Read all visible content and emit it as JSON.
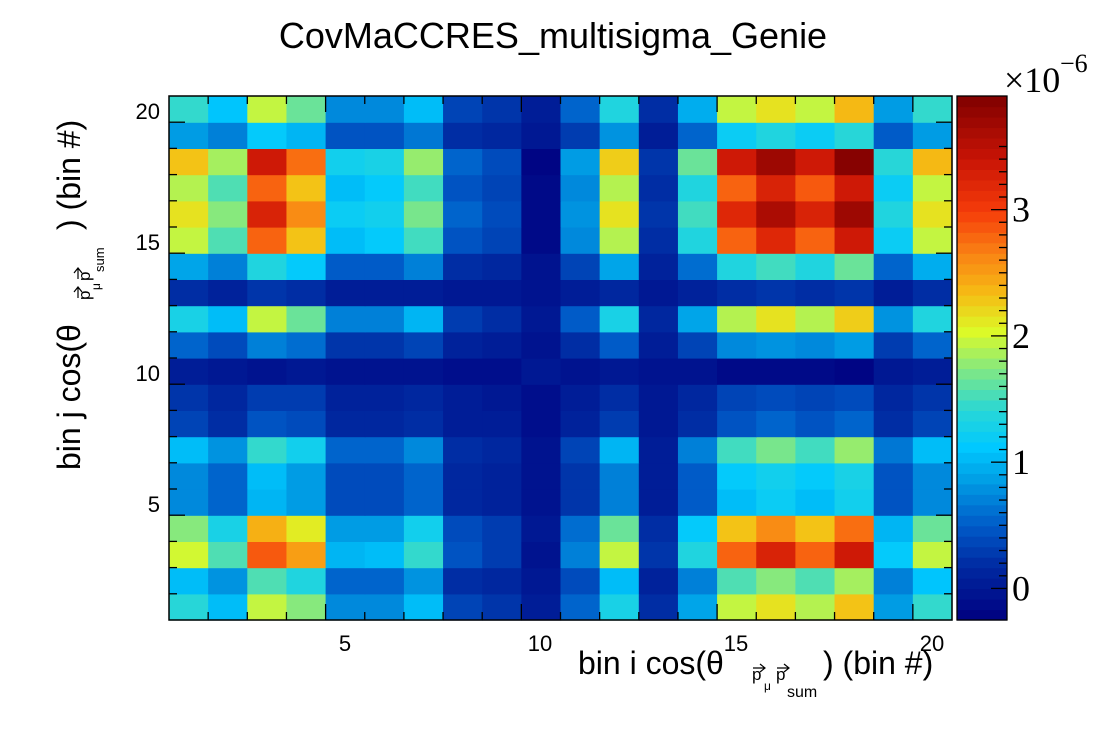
{
  "chart_data": {
    "type": "heatmap",
    "title": "CovMaCCRES_multisigma_Genie",
    "xlabel": {
      "pre": "bin i cos(θ",
      "sub_a": "p",
      "sub_b": "μ",
      "sub_c": "p",
      "sub_d": "sum",
      "post": ") (bin #)"
    },
    "ylabel": {
      "pre": "bin j cos(θ",
      "sub_a": "p",
      "sub_b": "μ",
      "sub_c": "p",
      "sub_d": "sum",
      "post": ") (bin #)"
    },
    "x_range": [
      1,
      21
    ],
    "y_range": [
      1,
      21
    ],
    "x_ticks": [
      "5",
      "10",
      "15",
      "20"
    ],
    "y_ticks": [
      "5",
      "10",
      "15",
      "20"
    ],
    "colorbar": {
      "multiplier": "×10",
      "exponent": "−6",
      "range": [
        -0.25,
        3.9
      ],
      "ticks": [
        "0",
        "1",
        "2",
        "3"
      ],
      "unit": 1e-06
    },
    "profile": [
      1.1,
      0.8,
      1.7,
      1.5,
      0.5,
      0.5,
      0.8,
      0.1,
      0.0,
      -0.2,
      0.3,
      1.1,
      -0.05,
      0.7,
      2.2,
      2.6,
      2.3,
      3.0,
      0.8,
      1.5
    ],
    "values_note": "",
    "values": [
      [
        1.4,
        1.05,
        1.95,
        1.75,
        0.75,
        0.75,
        1.05,
        0.35,
        0.25,
        0.05,
        0.55,
        1.3,
        0.2,
        0.9,
        1.95,
        2.15,
        1.9,
        2.3,
        0.85,
        1.45
      ],
      [
        1.05,
        0.8,
        1.55,
        1.35,
        0.55,
        0.55,
        0.8,
        0.2,
        0.15,
        0.0,
        0.4,
        1.05,
        0.1,
        0.7,
        1.55,
        1.75,
        1.55,
        1.85,
        0.7,
        1.1
      ],
      [
        2.0,
        1.55,
        2.85,
        2.5,
        1.0,
        1.05,
        1.45,
        0.45,
        0.3,
        -0.05,
        0.7,
        1.95,
        0.25,
        1.35,
        2.8,
        3.25,
        2.8,
        3.35,
        1.15,
        1.95
      ],
      [
        1.75,
        1.3,
        2.4,
        2.1,
        0.85,
        0.85,
        1.25,
        0.4,
        0.3,
        0.0,
        0.6,
        1.65,
        0.2,
        1.15,
        2.3,
        2.6,
        2.3,
        2.75,
        1.0,
        1.65
      ],
      [
        0.75,
        0.55,
        1.0,
        0.85,
        0.4,
        0.4,
        0.55,
        0.15,
        0.1,
        -0.05,
        0.25,
        0.7,
        0.05,
        0.5,
        1.05,
        1.2,
        1.05,
        1.25,
        0.45,
        0.75
      ],
      [
        0.75,
        0.55,
        1.05,
        0.85,
        0.4,
        0.4,
        0.55,
        0.15,
        0.1,
        -0.05,
        0.25,
        0.7,
        0.05,
        0.5,
        1.15,
        1.25,
        1.15,
        1.3,
        0.45,
        0.75
      ],
      [
        1.05,
        0.8,
        1.45,
        1.25,
        0.55,
        0.55,
        0.75,
        0.2,
        0.15,
        -0.05,
        0.35,
        1.0,
        0.05,
        0.7,
        1.5,
        1.7,
        1.5,
        1.8,
        0.65,
        1.05
      ],
      [
        0.35,
        0.2,
        0.45,
        0.4,
        0.15,
        0.15,
        0.2,
        0.05,
        0.05,
        -0.1,
        0.1,
        0.3,
        0.0,
        0.2,
        0.45,
        0.55,
        0.45,
        0.55,
        0.2,
        0.35
      ],
      [
        0.25,
        0.15,
        0.3,
        0.3,
        0.1,
        0.1,
        0.15,
        0.05,
        0.0,
        -0.1,
        0.05,
        0.2,
        0.0,
        0.15,
        0.35,
        0.4,
        0.35,
        0.4,
        0.15,
        0.25
      ],
      [
        0.05,
        0.0,
        -0.05,
        0.0,
        -0.05,
        -0.05,
        -0.05,
        -0.1,
        -0.1,
        0.0,
        -0.05,
        0.0,
        -0.05,
        -0.05,
        -0.15,
        -0.15,
        -0.15,
        -0.2,
        0.0,
        0.05
      ],
      [
        0.55,
        0.4,
        0.7,
        0.6,
        0.25,
        0.25,
        0.35,
        0.1,
        0.05,
        -0.05,
        0.2,
        0.5,
        0.05,
        0.35,
        0.75,
        0.8,
        0.75,
        0.85,
        0.3,
        0.55
      ],
      [
        1.3,
        1.05,
        1.95,
        1.65,
        0.7,
        0.7,
        1.0,
        0.3,
        0.2,
        0.0,
        0.5,
        1.3,
        0.15,
        0.9,
        1.9,
        2.15,
        1.9,
        2.25,
        0.8,
        1.35
      ],
      [
        0.2,
        0.1,
        0.25,
        0.2,
        0.05,
        0.05,
        0.05,
        0.0,
        0.0,
        -0.05,
        0.05,
        0.15,
        0.0,
        0.1,
        0.2,
        0.25,
        0.2,
        0.25,
        0.05,
        0.2
      ],
      [
        0.9,
        0.7,
        1.35,
        1.15,
        0.5,
        0.5,
        0.7,
        0.2,
        0.15,
        -0.05,
        0.35,
        0.9,
        0.1,
        0.6,
        1.35,
        1.5,
        1.35,
        1.65,
        0.55,
        0.95
      ],
      [
        1.95,
        1.55,
        2.8,
        2.3,
        1.05,
        1.15,
        1.5,
        0.45,
        0.35,
        -0.15,
        0.75,
        1.9,
        0.2,
        1.35,
        2.8,
        3.2,
        2.8,
        3.35,
        1.2,
        1.95
      ],
      [
        2.15,
        1.75,
        3.25,
        2.6,
        1.2,
        1.25,
        1.7,
        0.55,
        0.4,
        -0.15,
        0.8,
        2.15,
        0.25,
        1.5,
        3.2,
        3.6,
        3.25,
        3.7,
        1.35,
        2.15
      ],
      [
        1.9,
        1.55,
        2.8,
        2.3,
        1.05,
        1.15,
        1.5,
        0.45,
        0.35,
        -0.15,
        0.75,
        1.9,
        0.2,
        1.35,
        2.8,
        3.25,
        2.85,
        3.35,
        1.2,
        1.95
      ],
      [
        2.3,
        1.85,
        3.35,
        2.75,
        1.25,
        1.3,
        1.8,
        0.55,
        0.4,
        -0.2,
        0.85,
        2.25,
        0.25,
        1.65,
        3.35,
        3.7,
        3.35,
        3.85,
        1.4,
        2.35
      ],
      [
        0.85,
        0.7,
        1.15,
        1.0,
        0.45,
        0.45,
        0.65,
        0.2,
        0.15,
        0.0,
        0.3,
        0.8,
        0.05,
        0.55,
        1.2,
        1.35,
        1.2,
        1.4,
        0.5,
        0.85
      ],
      [
        1.45,
        1.1,
        1.95,
        1.65,
        0.75,
        0.75,
        1.05,
        0.35,
        0.25,
        0.05,
        0.55,
        1.35,
        0.2,
        0.95,
        1.95,
        2.15,
        1.95,
        2.35,
        0.85,
        1.45
      ]
    ]
  }
}
